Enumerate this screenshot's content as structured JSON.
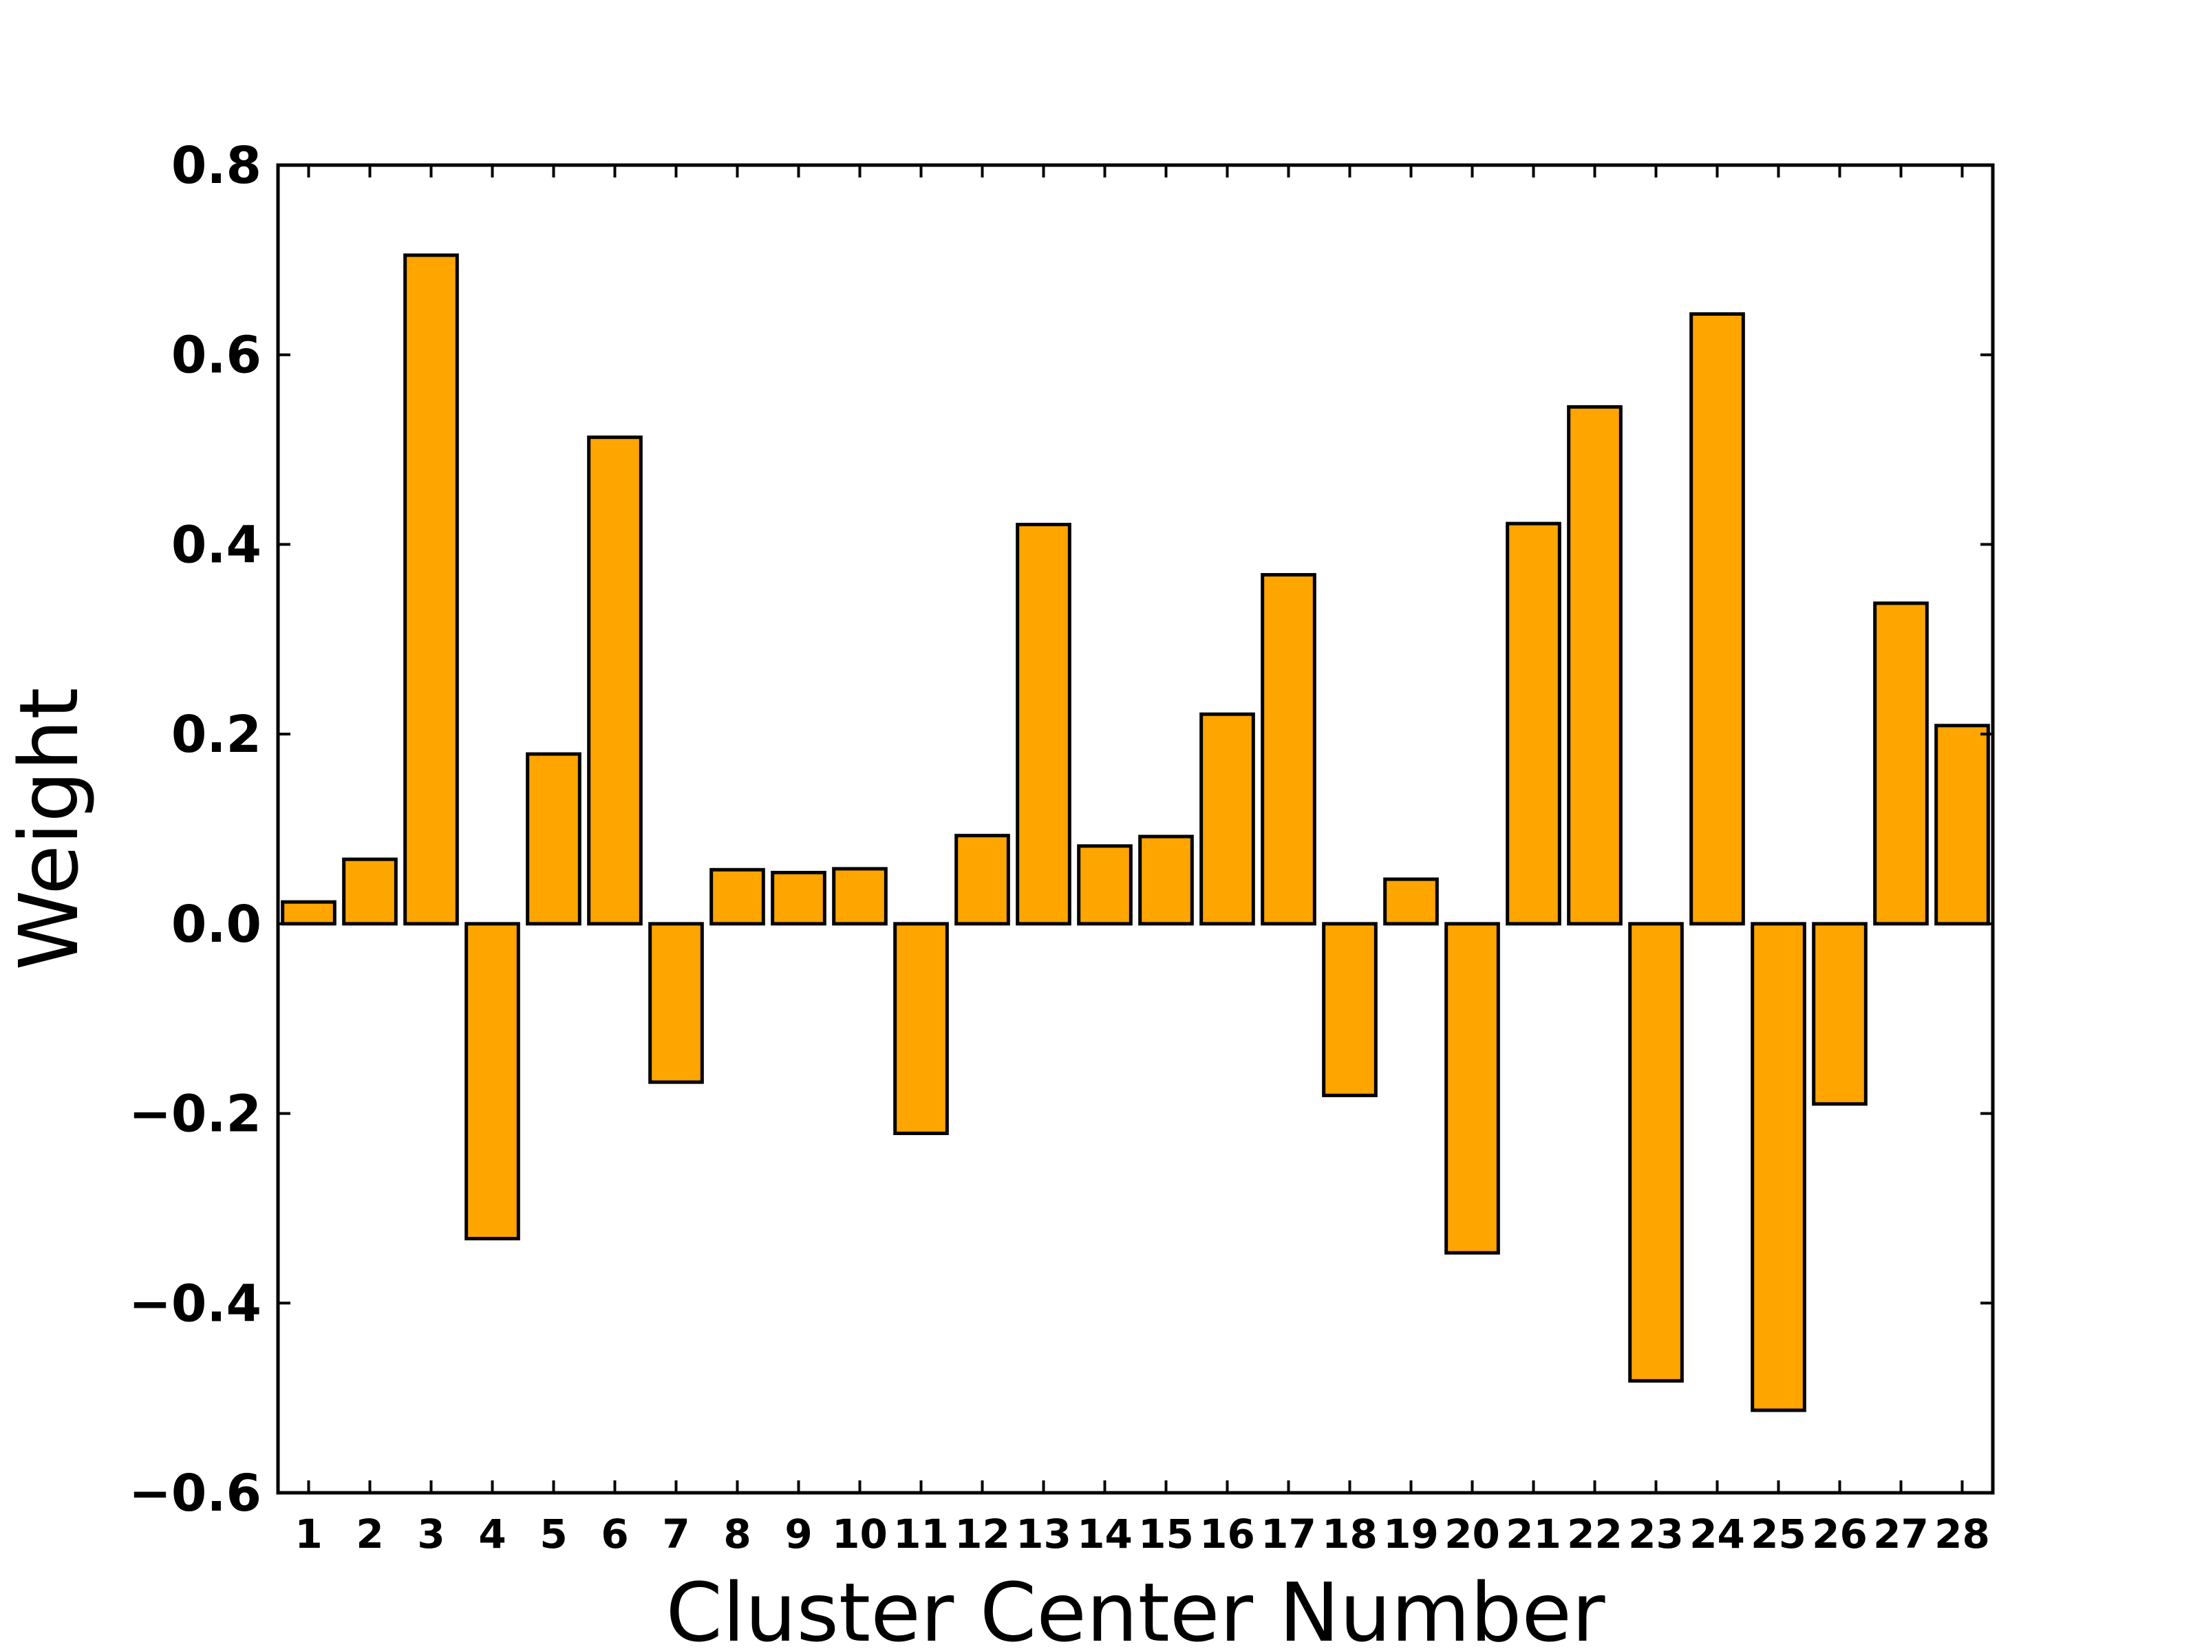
{
  "chart_data": {
    "type": "bar",
    "title": "",
    "xlabel": "Cluster Center Number",
    "ylabel": "Weight",
    "categories": [
      "1",
      "2",
      "3",
      "4",
      "5",
      "6",
      "7",
      "8",
      "9",
      "10",
      "11",
      "12",
      "13",
      "14",
      "15",
      "16",
      "17",
      "18",
      "19",
      "20",
      "21",
      "22",
      "23",
      "24",
      "25",
      "26",
      "27",
      "28"
    ],
    "values": [
      0.023,
      0.068,
      0.705,
      -0.332,
      0.179,
      0.513,
      -0.167,
      0.057,
      0.054,
      0.058,
      -0.221,
      0.093,
      0.421,
      0.082,
      0.092,
      0.221,
      0.368,
      -0.181,
      0.047,
      -0.347,
      0.422,
      0.545,
      -0.482,
      0.643,
      -0.513,
      -0.19,
      0.338,
      0.209
    ],
    "yticks": [
      "0.8",
      "0.6",
      "0.4",
      "0.2",
      "0.0",
      "−0.2",
      "−0.4",
      "−0.6"
    ],
    "ylim": [
      -0.6,
      0.8
    ],
    "grid": false,
    "colors": {
      "bar_fill": "#FFA500",
      "bar_edge": "#000000",
      "axis": "#000000"
    }
  }
}
